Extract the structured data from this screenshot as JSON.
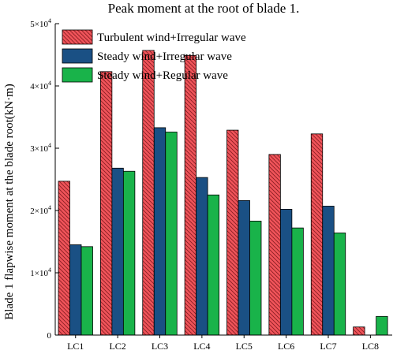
{
  "chart_data": {
    "type": "bar",
    "title": "Peak moment at the root of blade 1.",
    "xlabel": "",
    "ylabel": "Blade 1 flapwise moment at the blade root(kN·m)",
    "categories": [
      "LC1",
      "LC2",
      "LC3",
      "LC4",
      "LC5",
      "LC6",
      "LC7",
      "LC8"
    ],
    "ylim": [
      0,
      50000
    ],
    "yticks": [
      0,
      10000,
      20000,
      30000,
      40000,
      50000
    ],
    "ytick_labels": [
      {
        "mantissa": "0",
        "exp": ""
      },
      {
        "mantissa": "1×10",
        "exp": "4"
      },
      {
        "mantissa": "2×10",
        "exp": "4"
      },
      {
        "mantissa": "3×10",
        "exp": "4"
      },
      {
        "mantissa": "4×10",
        "exp": "4"
      },
      {
        "mantissa": "5×10",
        "exp": "4"
      }
    ],
    "legend_position": "top-left",
    "grid": false,
    "series": [
      {
        "name": "Turbulent wind+Irregular wave",
        "color": "#f0545a",
        "hatch": true,
        "values": [
          24700,
          42300,
          45700,
          44900,
          32900,
          29000,
          32300,
          1300
        ]
      },
      {
        "name": "Steady wind+Irregular wave",
        "color": "#1a5084",
        "hatch": false,
        "values": [
          14500,
          26800,
          33300,
          25300,
          21600,
          20200,
          20700,
          0
        ]
      },
      {
        "name": "Steady wind+Regular wave",
        "color": "#19b34a",
        "hatch": false,
        "values": [
          14200,
          26300,
          32600,
          22500,
          18300,
          17200,
          16400,
          3000
        ]
      }
    ]
  }
}
